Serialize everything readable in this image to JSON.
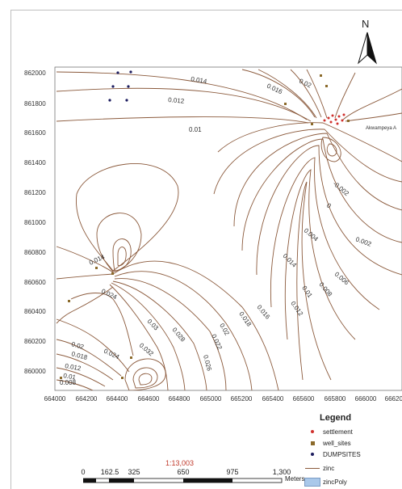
{
  "north": {
    "label": "N"
  },
  "axes": {
    "y_ticks": [
      "862000",
      "861800",
      "861600",
      "861400",
      "861200",
      "861000",
      "860800",
      "860600",
      "860400",
      "860200",
      "860000"
    ],
    "x_ticks": [
      "664000",
      "664200",
      "664400",
      "664600",
      "664800",
      "665000",
      "665200",
      "665400",
      "665600",
      "665800",
      "666000",
      "666200"
    ]
  },
  "contour_labels": [
    "0.014",
    "0.012",
    "0.016",
    "0.02",
    "0.01",
    "-0.002",
    "0",
    "0.004",
    "0.002",
    "0.006",
    "0.008",
    "0.014",
    "0.012",
    "0.01",
    "0.016",
    "0.018",
    "0.02",
    "0.022",
    "0.024",
    "0.026",
    "0.028",
    "0.03",
    "0.032",
    "0.014",
    "0.024",
    "0.02",
    "0.018",
    "0.012",
    "0.01",
    "0.008",
    "0.026",
    "0.012",
    "0.008",
    "0.014",
    "0.016"
  ],
  "place_label": "Akwampeya A",
  "legend": {
    "title": "Legend",
    "items": [
      {
        "label": "settlement",
        "icon": "red-dot",
        "color": "#d0312d"
      },
      {
        "label": "well_sites",
        "icon": "brown-square",
        "color": "#8b6a2b"
      },
      {
        "label": "DUMPSITES",
        "icon": "navy-dot",
        "color": "#1b1b5e"
      },
      {
        "label": "zinc",
        "icon": "brown-line",
        "color": "#8b5a3c"
      },
      {
        "label": "zincPoly",
        "icon": "blue-box",
        "color": "#a9c8ea"
      }
    ]
  },
  "scale": {
    "ratio": "1:13,003",
    "numbers": [
      "0",
      "162.5",
      "325",
      "650",
      "975",
      "1,300"
    ],
    "unit": "Meters"
  },
  "colors": {
    "contour": "#8b5a3c",
    "settlement": "#d0312d",
    "well": "#8b6a2b",
    "dump": "#1b1b5e"
  }
}
